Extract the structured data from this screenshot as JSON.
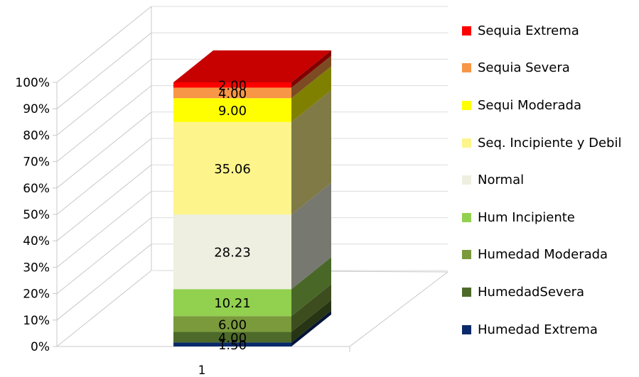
{
  "chart_data": {
    "type": "bar",
    "stacked": "percent",
    "three_d": true,
    "categories": [
      "1"
    ],
    "ylim": [
      0,
      100
    ],
    "yticks": [
      "0%",
      "10%",
      "20%",
      "30%",
      "40%",
      "50%",
      "60%",
      "70%",
      "80%",
      "90%",
      "100%"
    ],
    "legend_position": "right",
    "series": [
      {
        "name": "Humedad Extrema",
        "values": [
          1.5
        ],
        "label": "1.50",
        "color": "#0b2a6b"
      },
      {
        "name": "HumedadSevera",
        "values": [
          4.0
        ],
        "label": "4.00",
        "color": "#4e6a2a"
      },
      {
        "name": "Humedad Moderada",
        "values": [
          6.0
        ],
        "label": "6.00",
        "color": "#7a9a3c"
      },
      {
        "name": "Hum Incipiente",
        "values": [
          10.21
        ],
        "label": "10.21",
        "color": "#92d050"
      },
      {
        "name": "Normal",
        "values": [
          28.23
        ],
        "label": "28.23",
        "color": "#eeefe0"
      },
      {
        "name": "Seq. Incipiente y Debil",
        "values": [
          35.06
        ],
        "label": "35.06",
        "color": "#fdf48c"
      },
      {
        "name": "Sequi Moderada",
        "values": [
          9.0
        ],
        "label": "9.00",
        "color": "#ffff00"
      },
      {
        "name": "Sequia Severa",
        "values": [
          4.0
        ],
        "label": "4.00",
        "color": "#f79646"
      },
      {
        "name": "Sequia Extrema",
        "values": [
          2.0
        ],
        "label": "2.00",
        "color": "#ff0000"
      }
    ]
  }
}
